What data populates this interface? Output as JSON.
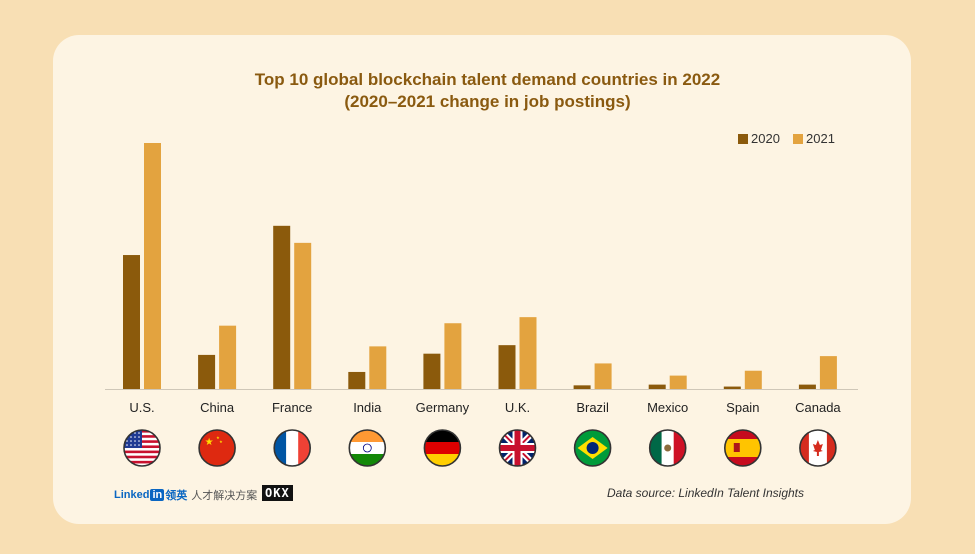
{
  "chart_data": {
    "type": "bar",
    "title": "Top 10 global blockchain talent demand countries in 2022",
    "subtitle": "(2020–2021 change in job postings)",
    "categories": [
      "U.S.",
      "China",
      "France",
      "India",
      "Germany",
      "U.K.",
      "Brazil",
      "Mexico",
      "Spain",
      "Canada"
    ],
    "series": [
      {
        "name": "2020",
        "color": "#8b5a0c",
        "values": [
          55,
          14,
          67,
          7,
          14.5,
          18,
          1.5,
          1.8,
          1,
          1.8
        ]
      },
      {
        "name": "2021",
        "color": "#e3a33f",
        "values": [
          101,
          26,
          60,
          17.5,
          27,
          29.5,
          10.5,
          5.5,
          7.5,
          13.5
        ]
      }
    ],
    "ylim": [
      0,
      110
    ],
    "xlabel": "",
    "ylabel": "",
    "grid": false,
    "legend_position": "top-right"
  },
  "flags": [
    "us-flag-icon",
    "china-flag-icon",
    "france-flag-icon",
    "india-flag-icon",
    "germany-flag-icon",
    "uk-flag-icon",
    "brazil-flag-icon",
    "mexico-flag-icon",
    "spain-flag-icon",
    "canada-flag-icon"
  ],
  "footer": {
    "linkedin_text": "Linked",
    "linkedin_in": "in",
    "linkedin_cn": "领英",
    "linkedin_cn_tagline": "人才解决方案",
    "okx_text": "OKX",
    "source": "Data source: LinkedIn Talent Insights"
  }
}
